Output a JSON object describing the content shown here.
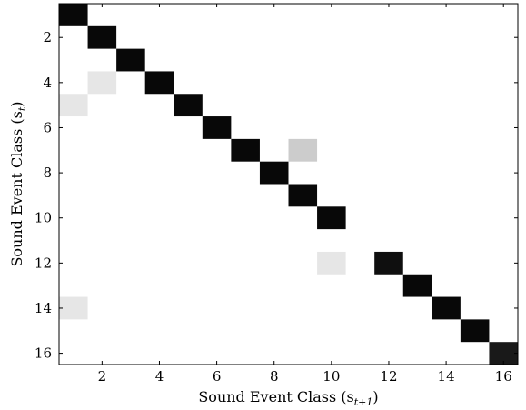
{
  "chart_data": {
    "type": "heatmap",
    "xlabel": "Sound Event Class (s",
    "xlabel_sub": "t+1",
    "xlabel_close": ")",
    "ylabel": "Sound Event Class (s",
    "ylabel_sub": "t",
    "ylabel_close": ")",
    "xlim": [
      0.5,
      16.5
    ],
    "ylim": [
      0.5,
      16.5
    ],
    "x_ticks": [
      2,
      4,
      6,
      8,
      10,
      12,
      14,
      16
    ],
    "y_ticks": [
      2,
      4,
      6,
      8,
      10,
      12,
      14,
      16
    ],
    "y_inverted": true,
    "grid": false,
    "colormap": "grayscale (white = 0, black = 1)",
    "cells": [
      {
        "x": 1,
        "y": 1,
        "v": 0.97
      },
      {
        "x": 2,
        "y": 2,
        "v": 0.97
      },
      {
        "x": 3,
        "y": 3,
        "v": 0.97
      },
      {
        "x": 4,
        "y": 4,
        "v": 0.97
      },
      {
        "x": 2,
        "y": 4,
        "v": 0.1
      },
      {
        "x": 1,
        "y": 5,
        "v": 0.1
      },
      {
        "x": 5,
        "y": 5,
        "v": 0.97
      },
      {
        "x": 6,
        "y": 6,
        "v": 0.97
      },
      {
        "x": 7,
        "y": 7,
        "v": 0.97
      },
      {
        "x": 9,
        "y": 7,
        "v": 0.2
      },
      {
        "x": 8,
        "y": 8,
        "v": 0.97
      },
      {
        "x": 9,
        "y": 9,
        "v": 0.97
      },
      {
        "x": 10,
        "y": 10,
        "v": 0.97
      },
      {
        "x": 10,
        "y": 12,
        "v": 0.1
      },
      {
        "x": 12,
        "y": 12,
        "v": 0.94
      },
      {
        "x": 13,
        "y": 13,
        "v": 0.97
      },
      {
        "x": 14,
        "y": 14,
        "v": 0.97
      },
      {
        "x": 1,
        "y": 14,
        "v": 0.1
      },
      {
        "x": 15,
        "y": 15,
        "v": 0.97
      },
      {
        "x": 16,
        "y": 16,
        "v": 0.9
      }
    ]
  }
}
